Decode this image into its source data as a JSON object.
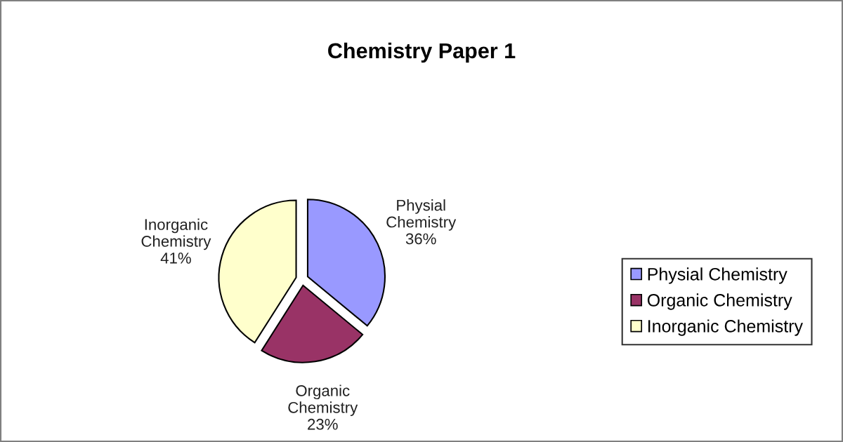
{
  "chart_data": {
    "type": "pie",
    "title": "Chemistry Paper 1",
    "categories": [
      "Physial Chemistry",
      "Organic Chemistry",
      "Inorganic Chemistry"
    ],
    "values": [
      36,
      23,
      41
    ],
    "value_labels": [
      "36%",
      "23%",
      "41%"
    ],
    "colors": [
      "#9999ff",
      "#993366",
      "#ffffcc"
    ],
    "legend": "right"
  }
}
